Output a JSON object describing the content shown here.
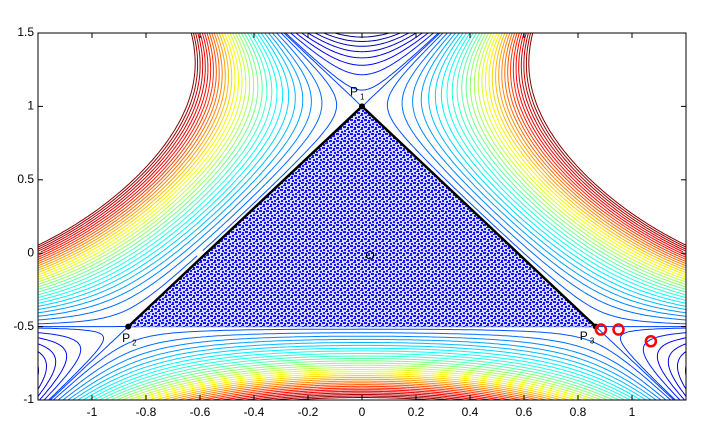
{
  "chart_data": {
    "type": "contour",
    "xlim": [
      -1.2,
      1.2
    ],
    "ylim": [
      -1,
      1.5
    ],
    "xticks": [
      -1,
      -0.8,
      -0.6,
      -0.4,
      -0.2,
      0,
      0.2,
      0.4,
      0.6,
      0.8,
      1
    ],
    "yticks": [
      -1,
      -0.5,
      0,
      0.5,
      1,
      1.5
    ],
    "colormap": "jet",
    "levels": [
      0.02,
      0.04,
      0.06,
      0.08,
      0.1,
      0.12,
      0.14,
      0.16,
      0.1667,
      0.18,
      0.2,
      0.22,
      0.24,
      0.26,
      0.28,
      0.3,
      0.32,
      0.34,
      0.36,
      0.38,
      0.4,
      0.42,
      0.44,
      0.46,
      0.48,
      0.5,
      0.52,
      0.54,
      0.56,
      0.58,
      0.6,
      0.62,
      0.64,
      0.66,
      0.68,
      0.7,
      0.72,
      0.74,
      0.76,
      0.78,
      0.8
    ],
    "orbit_color": "#0000ff",
    "triangle_color": "#000000",
    "points": [
      {
        "name": "P",
        "sub": "1",
        "x": 0,
        "y": 1
      },
      {
        "name": "P",
        "sub": "2",
        "x": -0.866,
        "y": -0.5
      },
      {
        "name": "P",
        "sub": "3",
        "x": 0.866,
        "y": -0.5
      }
    ],
    "markers": {
      "color": "#ff0000",
      "x": [
        0.885,
        0.95,
        1.07
      ],
      "y": [
        -0.52,
        -0.52,
        -0.6
      ]
    },
    "annotations": [
      {
        "text": "O",
        "x": 0.03,
        "y": -0.02
      }
    ]
  }
}
